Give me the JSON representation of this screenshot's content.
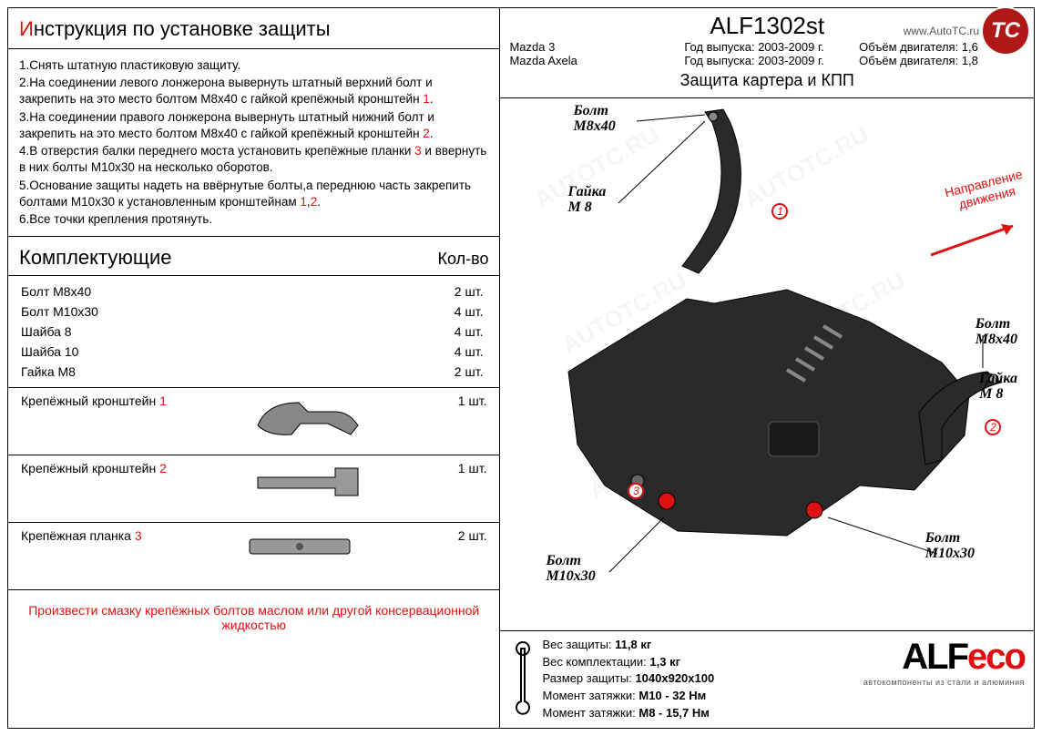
{
  "colors": {
    "accent": "#d11",
    "text": "#000",
    "bg": "#ffffff",
    "skid": "#2a2a2a",
    "badge": "#b01818"
  },
  "badge": {
    "text": "TC",
    "url": "www.AutoTC.ru"
  },
  "left": {
    "title_prefix": "И",
    "title_rest": "нструкция по установке защиты",
    "steps": [
      "1.Снять штатную пластиковую защиту.",
      "2.На соединении левого лонжерона вывернуть штатный верхний болт и закрепить на это место болтом М8х40 с гайкой крепёжный кронштейн {r1}.",
      "3.На соединении правого лонжерона вывернуть штатный нижний болт и закрепить на это место болтом М8х40 с гайкой крепёжный кронштейн {r2}.",
      "4.В отверстия балки переднего моста установить крепёжные планки {r3} и ввернуть в них болты М10х30 на несколько оборотов.",
      "5.Основание защиты надеть на ввёрнутые болты,а переднюю часть закрепить болтами М10х30 к установленным кронштейнам {r1},{r2}.",
      "6.Все точки крепления протянуть."
    ],
    "comp_title": "Комплектующие",
    "qty_title": "Кол-во",
    "hardware": [
      {
        "name": "Болт М8х40",
        "qty": "2 шт."
      },
      {
        "name": "Болт М10х30",
        "qty": "4 шт."
      },
      {
        "name": "Шайба 8",
        "qty": "4 шт."
      },
      {
        "name": "Шайба 10",
        "qty": "4 шт."
      },
      {
        "name": "Гайка М8",
        "qty": "2 шт."
      }
    ],
    "brackets": [
      {
        "name": "Крепёжный кронштейн",
        "num": "1",
        "qty": "1 шт."
      },
      {
        "name": "Крепёжный кронштейн",
        "num": "2",
        "qty": "1 шт."
      },
      {
        "name": "Крепёжная планка",
        "num": "3",
        "qty": "2 шт."
      }
    ],
    "footer_note": "Произвести смазку крепёжных болтов маслом или другой консервационной жидкостью"
  },
  "right": {
    "part_no": "ALF1302st",
    "meta_rows": [
      [
        "Mazda 3",
        "Год выпуска: 2003-2009 г.",
        "Объём двигателя: 1,6"
      ],
      [
        "Mazda Axela",
        "Год выпуска: 2003-2009 г.",
        "Объём двигателя: 1,8"
      ]
    ],
    "subtitle": "Защита картера и КПП",
    "direction": "Направление\nдвижения",
    "callouts": {
      "bolt_m8x40_top": "Болт\nМ8х40",
      "nut_m8_top": "Гайка\nM 8",
      "bolt_m8x40_r": "Болт\nМ8х40",
      "nut_m8_r": "Гайка\nM 8",
      "bolt_m10x30_l": "Болт\nM10x30",
      "bolt_m10x30_r": "Болт\nM10x30"
    },
    "specs": [
      "Вес защиты: 11,8 кг",
      "Вес комплектации: 1,3 кг",
      "Размер защиты: 1040х920х100",
      "Момент затяжки:      М10 - 32 Нм",
      "Момент затяжки:      М8 - 15,7 Нм"
    ],
    "logo": {
      "alf": "ALF",
      "eco": "eco",
      "tagline": "автокомпоненты из стали и алюминия"
    }
  },
  "watermark": "AUTOTC.RU"
}
